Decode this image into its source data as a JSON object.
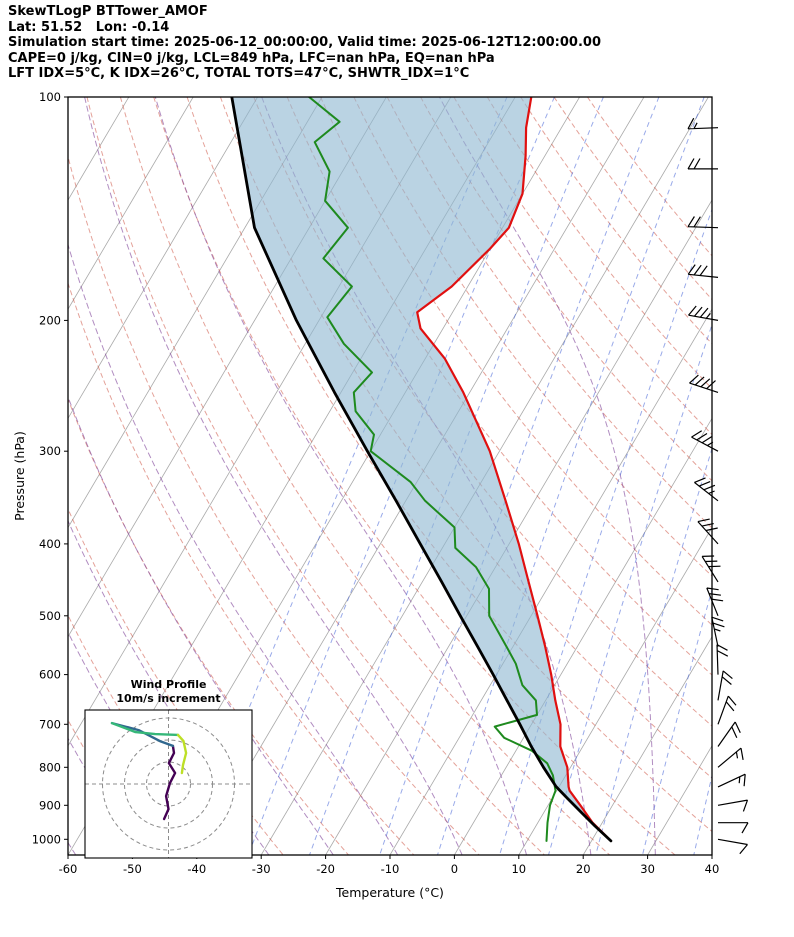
{
  "header": {
    "title": "SkewTLogP BTTower_AMOF",
    "location": "Lat: 51.52   Lon: -0.14",
    "times": "Simulation start time: 2025-06-12_00:00:00, Valid time: 2025-06-12T12:00:00.00",
    "indices1": "CAPE=0 j/kg, CIN=0 j/kg, LCL=849 hPa, LFC=nan hPa, EQ=nan hPa",
    "indices2": "LFT IDX=5°C, K IDX=26°C, TOTAL TOTS=47°C, SHWTR_IDX=1°C"
  },
  "chart_data": {
    "type": "line",
    "variant": "skew-t-log-p",
    "title": "SkewTLogP BTTower_AMOF",
    "xlabel": "Temperature (°C)",
    "ylabel": "Pressure (hPa)",
    "xlim": [
      -60,
      40
    ],
    "pressure_lim": [
      1050,
      100
    ],
    "x_ticks": [
      -60,
      -50,
      -40,
      -30,
      -20,
      -10,
      0,
      10,
      20,
      30,
      40
    ],
    "y_ticks": [
      100,
      200,
      300,
      400,
      500,
      600,
      700,
      800,
      900,
      1000
    ],
    "skew_deg_per_decade": 68,
    "grid_on": true,
    "background": {
      "isotherm_step_c": 10,
      "dry_adiabats_c": [
        -50,
        -40,
        -30,
        -20,
        -10,
        0,
        10,
        20,
        30,
        40,
        50,
        60,
        70,
        80,
        90,
        100,
        110,
        120,
        130,
        140,
        150,
        160
      ],
      "moist_adiabats_c": [
        -60,
        -50,
        -40,
        -30,
        -20,
        -10,
        0,
        10,
        20,
        30
      ],
      "mixing_ratios_g_kg": [
        0.1,
        0.25,
        0.6,
        1.5,
        3,
        6,
        10,
        16,
        25,
        40
      ]
    },
    "colors": {
      "isotherm": "#a9a9a9",
      "dry_adiabat": "rgba(205,85,70,0.55)",
      "moist_adiabat": "rgba(135,80,160,0.65)",
      "mixing_ratio": "rgba(70,100,215,0.55)",
      "temperature": "#e01010",
      "dewpoint": "#1e8a1e",
      "parcel": "#000000",
      "shading": "#8fb8d2",
      "barb": "#000000"
    },
    "series": [
      {
        "name": "temperature",
        "label": "Environment temperature",
        "color": "#e01010",
        "points": [
          [
            1005,
            23
          ],
          [
            950,
            18.5
          ],
          [
            900,
            15
          ],
          [
            860,
            12
          ],
          [
            850,
            11.5
          ],
          [
            800,
            9.5
          ],
          [
            750,
            6.5
          ],
          [
            700,
            4.5
          ],
          [
            650,
            1.5
          ],
          [
            600,
            -1.5
          ],
          [
            550,
            -5
          ],
          [
            500,
            -9
          ],
          [
            450,
            -13.5
          ],
          [
            400,
            -18.5
          ],
          [
            350,
            -24.5
          ],
          [
            300,
            -31.5
          ],
          [
            250,
            -41
          ],
          [
            225,
            -47
          ],
          [
            205,
            -53.5
          ],
          [
            195,
            -55.5
          ],
          [
            180,
            -52.5
          ],
          [
            160,
            -50
          ],
          [
            150,
            -49
          ],
          [
            135,
            -50
          ],
          [
            120,
            -53
          ],
          [
            110,
            -55.5
          ],
          [
            100,
            -57.5
          ]
        ]
      },
      {
        "name": "dewpoint",
        "label": "Dewpoint",
        "color": "#1e8a1e",
        "points": [
          [
            1005,
            13
          ],
          [
            950,
            11.5
          ],
          [
            900,
            10.3
          ],
          [
            860,
            9.8
          ],
          [
            820,
            8
          ],
          [
            790,
            6
          ],
          [
            760,
            2.5
          ],
          [
            730,
            -3
          ],
          [
            705,
            -5.5
          ],
          [
            680,
            0
          ],
          [
            650,
            -1.5
          ],
          [
            620,
            -5
          ],
          [
            580,
            -8
          ],
          [
            550,
            -11
          ],
          [
            500,
            -16.5
          ],
          [
            460,
            -19
          ],
          [
            430,
            -23
          ],
          [
            405,
            -28
          ],
          [
            380,
            -30
          ],
          [
            350,
            -37
          ],
          [
            330,
            -41
          ],
          [
            300,
            -50
          ],
          [
            285,
            -51
          ],
          [
            265,
            -56
          ],
          [
            250,
            -58
          ],
          [
            235,
            -57
          ],
          [
            215,
            -64
          ],
          [
            198,
            -69
          ],
          [
            180,
            -68
          ],
          [
            165,
            -75
          ],
          [
            150,
            -74
          ],
          [
            138,
            -80
          ],
          [
            126,
            -82
          ],
          [
            115,
            -87
          ],
          [
            108,
            -85
          ],
          [
            100,
            -92
          ]
        ]
      },
      {
        "name": "parcel",
        "label": "Parcel path",
        "color": "#000000",
        "points": [
          [
            1005,
            23
          ],
          [
            960,
            19.2
          ],
          [
            920,
            15.8
          ],
          [
            880,
            12.3
          ],
          [
            849,
            9.5
          ],
          [
            800,
            5.8
          ],
          [
            750,
            2
          ],
          [
            700,
            -1.8
          ],
          [
            650,
            -6
          ],
          [
            600,
            -10.5
          ],
          [
            550,
            -15.5
          ],
          [
            500,
            -21
          ],
          [
            450,
            -27
          ],
          [
            400,
            -33.8
          ],
          [
            350,
            -41.5
          ],
          [
            300,
            -50.5
          ],
          [
            250,
            -61
          ],
          [
            200,
            -73.5
          ],
          [
            150,
            -88.5
          ],
          [
            100,
            -104
          ]
        ]
      }
    ],
    "shading_between": [
      "parcel",
      "temperature"
    ],
    "wind_barbs_kt": [
      {
        "p": 1000,
        "kt": 8,
        "dir": 100
      },
      {
        "p": 950,
        "kt": 10,
        "dir": 90
      },
      {
        "p": 900,
        "kt": 12,
        "dir": 80
      },
      {
        "p": 850,
        "kt": 15,
        "dir": 65
      },
      {
        "p": 800,
        "kt": 15,
        "dir": 50
      },
      {
        "p": 750,
        "kt": 18,
        "dir": 35
      },
      {
        "p": 700,
        "kt": 20,
        "dir": 20
      },
      {
        "p": 650,
        "kt": 20,
        "dir": 10
      },
      {
        "p": 600,
        "kt": 22,
        "dir": 358
      },
      {
        "p": 550,
        "kt": 25,
        "dir": 348
      },
      {
        "p": 500,
        "kt": 28,
        "dir": 338
      },
      {
        "p": 450,
        "kt": 30,
        "dir": 328
      },
      {
        "p": 400,
        "kt": 32,
        "dir": 318
      },
      {
        "p": 350,
        "kt": 35,
        "dir": 308
      },
      {
        "p": 300,
        "kt": 35,
        "dir": 298
      },
      {
        "p": 250,
        "kt": 38,
        "dir": 288
      },
      {
        "p": 200,
        "kt": 35,
        "dir": 280
      },
      {
        "p": 175,
        "kt": 28,
        "dir": 276
      },
      {
        "p": 150,
        "kt": 22,
        "dir": 272
      },
      {
        "p": 125,
        "kt": 18,
        "dir": 270
      },
      {
        "p": 110,
        "kt": 15,
        "dir": 268
      }
    ],
    "hodograph": {
      "title": "Wind Profile",
      "subtitle": "10m/s increment",
      "ring_increment_ms": 10,
      "rings_ms": [
        10,
        20,
        30
      ],
      "trace_ms": [
        {
          "color": "#440154",
          "points": [
            [
              -2,
              -15.9
            ],
            [
              0,
              -11.4
            ],
            [
              -1.1,
              -5.5
            ],
            [
              0.7,
              0.5
            ],
            [
              3,
              5
            ],
            [
              0.2,
              9.5
            ],
            [
              2.5,
              14.1
            ],
            [
              2,
              17.3
            ]
          ]
        },
        {
          "color": "#31688e",
          "points": [
            [
              2,
              17.3
            ],
            [
              -3.9,
              19.5
            ],
            [
              -13.6,
              24.5
            ],
            [
              -25.7,
              27.7
            ]
          ]
        },
        {
          "color": "#35b779",
          "points": [
            [
              -25.7,
              27.7
            ],
            [
              -15,
              23.6
            ],
            [
              -6.1,
              22.7
            ],
            [
              4.3,
              22.3
            ]
          ]
        },
        {
          "color": "#bddf26",
          "points": [
            [
              4.3,
              22.3
            ],
            [
              6.8,
              19.5
            ],
            [
              8,
              14.1
            ],
            [
              6.6,
              8.6
            ],
            [
              6.1,
              5
            ]
          ]
        }
      ]
    }
  }
}
